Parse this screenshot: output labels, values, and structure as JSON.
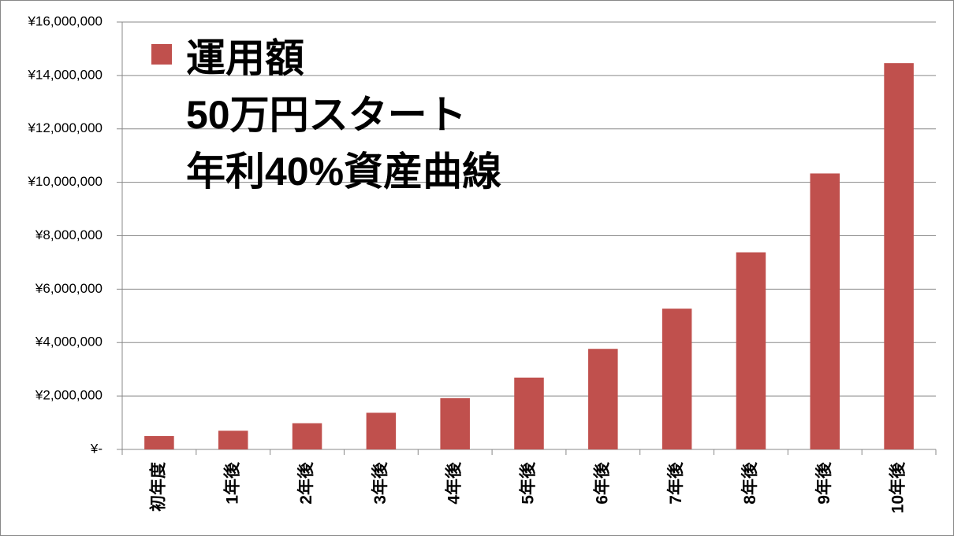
{
  "chart_data": {
    "type": "bar",
    "categories": [
      "初年度",
      "1年後",
      "2年後",
      "3年後",
      "4年後",
      "5年後",
      "6年後",
      "7年後",
      "8年後",
      "9年後",
      "10年後"
    ],
    "series": [
      {
        "name": "運用額\n50万円スタート\n年利40%資産曲線",
        "color": "#c0504d",
        "values": [
          500000,
          700000,
          980000,
          1372000,
          1920800,
          2689120,
          3764768,
          5270675,
          7378945,
          10330523,
          14462732
        ]
      }
    ],
    "ylim": [
      0,
      16000000
    ],
    "yticks": [
      {
        "value": 0,
        "label": "¥-"
      },
      {
        "value": 2000000,
        "label": "¥2,000,000"
      },
      {
        "value": 4000000,
        "label": "¥4,000,000"
      },
      {
        "value": 6000000,
        "label": "¥6,000,000"
      },
      {
        "value": 8000000,
        "label": "¥8,000,000"
      },
      {
        "value": 10000000,
        "label": "¥10,000,000"
      },
      {
        "value": 12000000,
        "label": "¥12,000,000"
      },
      {
        "value": 14000000,
        "label": "¥14,000,000"
      },
      {
        "value": 16000000,
        "label": "¥16,000,000"
      }
    ],
    "grid": true,
    "legend": "top-left"
  }
}
